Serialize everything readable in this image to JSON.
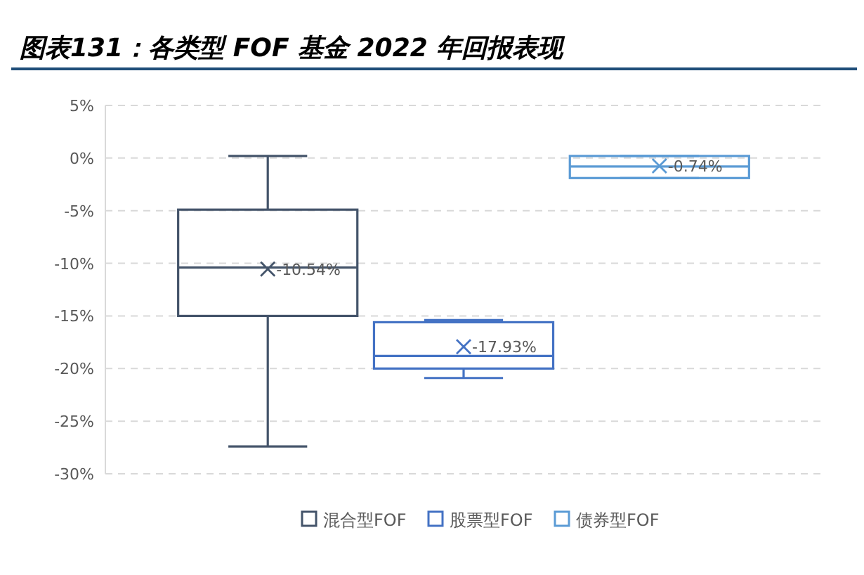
{
  "chart_data": {
    "type": "box",
    "title": "图表131：各类型 FOF 基金 2022 年回报表现",
    "categories": [
      null
    ],
    "series": [
      {
        "name": "混合型FOF",
        "color": "#44546a",
        "boxes": [
          {
            "low": -27.4,
            "q1": -15,
            "median": -10.4,
            "q3": -4.9,
            "high": 0.2,
            "mean": -10.54
          }
        ]
      },
      {
        "name": "股票型FOF",
        "color": "#4472c4",
        "boxes": [
          {
            "low": -20.9,
            "q1": -20,
            "median": -18.8,
            "q3": -15.6,
            "high": -15.4,
            "mean": -17.93
          }
        ]
      },
      {
        "name": "债券型FOF",
        "color": "#5b9bd5",
        "boxes": [
          {
            "low": -1.9,
            "q1": -1.9,
            "median": -0.8,
            "q3": 0.2,
            "high": 0.2,
            "mean": -0.74
          }
        ]
      }
    ],
    "annotations": [
      "-10.54%",
      "-17.93%",
      "-0.74%"
    ],
    "ylim": [
      -30,
      5
    ],
    "yticks": [
      {
        "value": 5,
        "label": "5%"
      },
      {
        "value": 0,
        "label": "0%"
      },
      {
        "value": -5,
        "label": "-5%"
      },
      {
        "value": -10,
        "label": "-10%"
      },
      {
        "value": -15,
        "label": "-15%"
      },
      {
        "value": -20,
        "label": "-20%"
      },
      {
        "value": -25,
        "label": "-25%"
      },
      {
        "value": -30,
        "label": "-30%"
      }
    ],
    "grid": "y",
    "legend": "bottom",
    "marker": "cross"
  }
}
